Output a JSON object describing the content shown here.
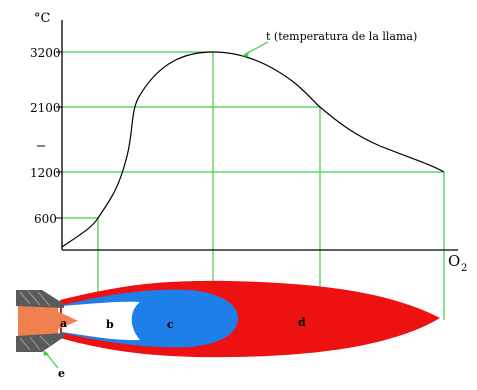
{
  "unit_label": "°C",
  "x_axis_label": "O",
  "x_axis_subscript": "2",
  "curve_label": "t (temperatura de la llama)",
  "y_ticks": [
    "3200",
    "2100",
    "1200",
    "600"
  ],
  "flame_zones": [
    "a",
    "b",
    "c",
    "d",
    "e"
  ],
  "colors": {
    "curve": "#000000",
    "guide_lines": "#44cc44",
    "zone_a": "#f08050",
    "zone_b": "#ffffff",
    "zone_c": "#1e7fe8",
    "zone_d": "#ee1111",
    "nozzle": "#555555"
  },
  "chart_data": {
    "type": "line",
    "ylabel": "°C",
    "y_ticks": [
      600,
      1200,
      2100,
      3200
    ],
    "annotation": "t (temperatura de la llama)",
    "series": [
      {
        "points": [
          {
            "zone": "start",
            "y": 0
          },
          {
            "zone": "a",
            "y": 600
          },
          {
            "zone": "c",
            "y": 3200
          },
          {
            "zone": "d",
            "y": 2100
          },
          {
            "zone": "end",
            "y": 1200
          }
        ]
      }
    ]
  }
}
